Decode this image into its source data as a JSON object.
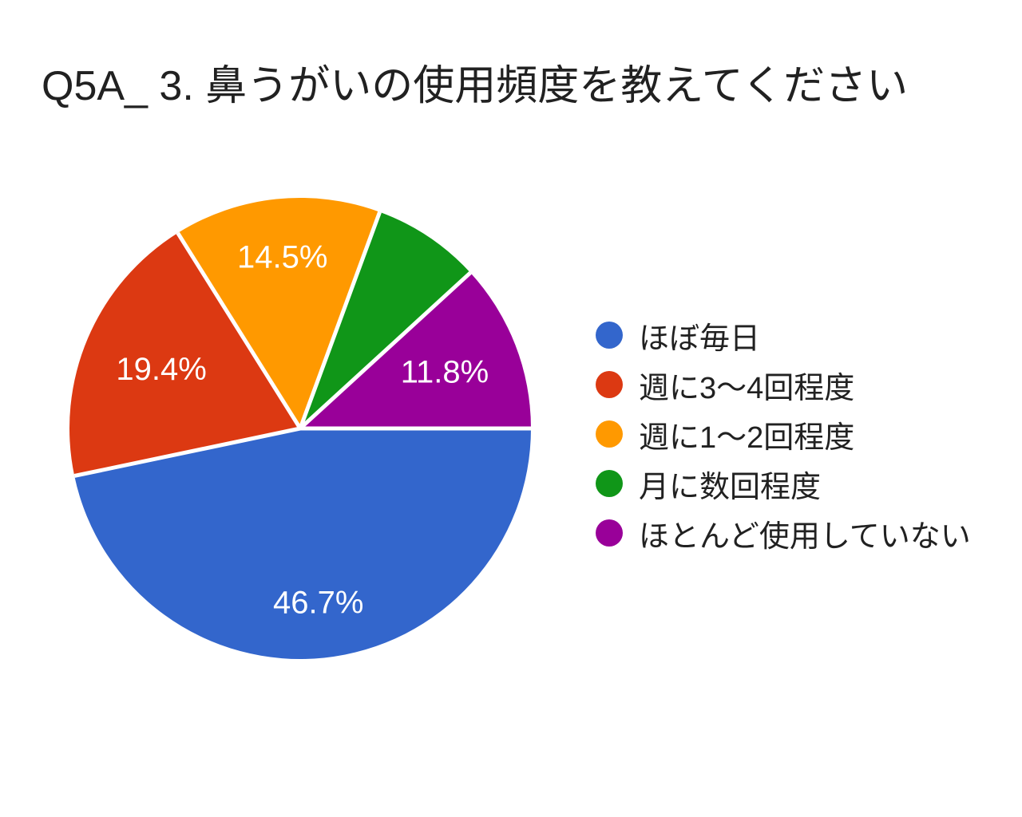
{
  "title": "Q5A_ 3. 鼻うがいの使用頻度を教えてください",
  "chart_data": {
    "type": "pie",
    "title": "Q5A_ 3. 鼻うがいの使用頻度を教えてください",
    "categories": [
      "ほぼ毎日",
      "週に3〜4回程度",
      "週に1〜2回程度",
      "月に数回程度",
      "ほとんど使用していない"
    ],
    "values": [
      46.7,
      19.4,
      14.5,
      7.6,
      11.8
    ],
    "slice_labels": [
      "46.7%",
      "19.4%",
      "14.5%",
      "",
      "11.8%"
    ],
    "colors": [
      "#3366CC",
      "#DC3912",
      "#FF9900",
      "#109618",
      "#990099"
    ],
    "slice_label_color": "#ffffff",
    "text_color": "#212121",
    "background": "#ffffff",
    "start_angle_deg": 0,
    "direction": "clockwise",
    "legend_position": "right",
    "separator_color": "#ffffff"
  }
}
